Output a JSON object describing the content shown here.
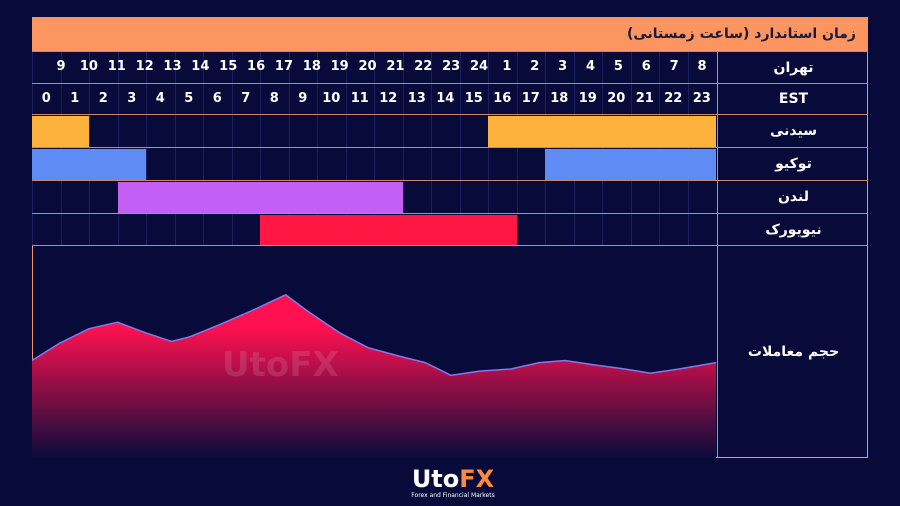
{
  "header": {
    "title": "زمان استاندارد (ساعت زمستانی)"
  },
  "rows": {
    "tehran": "تهران",
    "est": "EST",
    "sydney": "سیدنی",
    "tokyo": "توکیو",
    "london": "لندن",
    "newyork": "نیویورک",
    "volume": "حجم معاملات"
  },
  "tehran_hours": [
    "9",
    "10",
    "11",
    "12",
    "13",
    "14",
    "15",
    "16",
    "17",
    "18",
    "19",
    "20",
    "21",
    "22",
    "23",
    "24",
    "1",
    "2",
    "3",
    "4",
    "5",
    "6",
    "7",
    "8"
  ],
  "est_hours": [
    "0",
    "1",
    "2",
    "3",
    "4",
    "5",
    "6",
    "7",
    "8",
    "9",
    "10",
    "11",
    "12",
    "13",
    "14",
    "15",
    "16",
    "17",
    "18",
    "19",
    "20",
    "21",
    "22",
    "23"
  ],
  "sessions": [
    {
      "key": "sydney",
      "color": "#fdb23e",
      "ranges": [
        [
          0,
          2
        ],
        [
          16,
          24
        ]
      ]
    },
    {
      "key": "tokyo",
      "color": "#5f8bf5",
      "ranges": [
        [
          0,
          4
        ],
        [
          18,
          24
        ]
      ]
    },
    {
      "key": "london",
      "color": "#c45ff5",
      "ranges": [
        [
          3,
          13
        ]
      ]
    },
    {
      "key": "newyork",
      "color": "#ff1744",
      "ranges": [
        [
          8,
          17
        ]
      ]
    }
  ],
  "chart_data": {
    "type": "area",
    "xlabel": "",
    "ylabel": "حجم معاملات",
    "xlim": [
      0,
      24
    ],
    "ylim": [
      0,
      100
    ],
    "x": [
      0,
      0.95,
      2,
      3,
      4,
      4.9,
      5.5,
      6.6,
      7.8,
      8.9,
      9.7,
      10.8,
      11.8,
      12.9,
      13.8,
      14.7,
      15.7,
      16.8,
      17.8,
      18.7,
      19.7,
      20.8,
      21.7,
      22.7,
      24
    ],
    "values": [
      46,
      54,
      61,
      64,
      59,
      55,
      57,
      63,
      70,
      77,
      69,
      59,
      52,
      48,
      45,
      39,
      41,
      42,
      45,
      46,
      44,
      42,
      40,
      42,
      45
    ],
    "line_color": "#7b7bf0",
    "fill_top": "#ff1050",
    "fill_bottom": "#0a0c3a"
  },
  "logo": {
    "name": "UtoFX",
    "tagline": "Forex and Financial Markets"
  }
}
